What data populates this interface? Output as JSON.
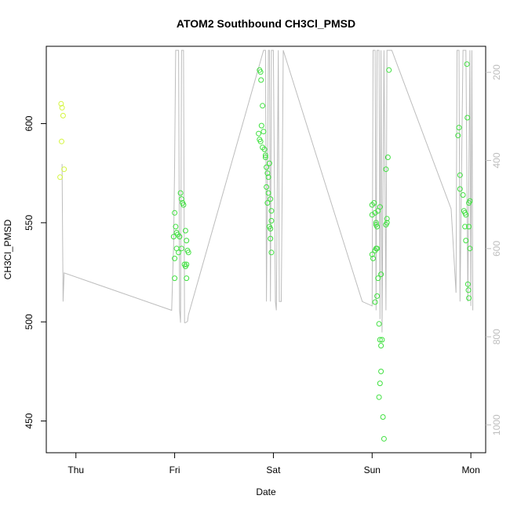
{
  "chart_data": {
    "type": "scatter",
    "title": "ATOM2 Southbound CH3Cl_PMSD",
    "xlabel": "Date",
    "ylabel": "CH3Cl_PMSD",
    "x_ticks": [
      "Thu",
      "Fri",
      "Sat",
      "Sun",
      "Mon"
    ],
    "x_range_days": [
      -0.3,
      4.15
    ],
    "ylim": [
      434,
      639
    ],
    "y_ticks": [
      450,
      500,
      550,
      600
    ],
    "y2_ticks": [
      200,
      400,
      600,
      800,
      1000
    ],
    "y2_range": [
      1063,
      141
    ],
    "y2_reversed": true,
    "grid": false,
    "colors": {
      "axis": "#000000",
      "secondary_axis": "#bdbdbd",
      "altitude_line": "#bdbdbd",
      "points_early": "#d4f53c",
      "points": "#40e040"
    },
    "series": [
      {
        "points": [
          [
            -0.15,
            610
          ],
          [
            -0.14,
            608
          ],
          [
            -0.13,
            604
          ],
          [
            -0.145,
            591
          ],
          [
            -0.12,
            577
          ],
          [
            -0.16,
            573
          ],
          [
            0.99,
            543
          ],
          [
            1.0,
            555
          ],
          [
            1.01,
            548
          ],
          [
            1.02,
            545
          ],
          [
            1.03,
            544
          ],
          [
            1.0,
            532
          ],
          [
            1.02,
            537
          ],
          [
            1.06,
            565
          ],
          [
            1.07,
            562
          ],
          [
            1.08,
            560
          ],
          [
            1.09,
            559
          ],
          [
            1.05,
            543
          ],
          [
            1.07,
            537
          ],
          [
            1.04,
            535
          ],
          [
            1.11,
            546
          ],
          [
            1.12,
            541
          ],
          [
            1.13,
            536
          ],
          [
            1.14,
            535
          ],
          [
            1.1,
            529
          ],
          [
            1.12,
            529
          ],
          [
            1.11,
            528
          ],
          [
            1.0,
            522
          ],
          [
            1.12,
            522
          ],
          [
            1.86,
            627
          ],
          [
            1.87,
            626
          ],
          [
            1.875,
            622
          ],
          [
            1.89,
            609
          ],
          [
            1.85,
            595
          ],
          [
            1.86,
            592
          ],
          [
            1.87,
            591
          ],
          [
            1.88,
            599
          ],
          [
            1.9,
            596
          ],
          [
            1.89,
            588
          ],
          [
            1.91,
            587
          ],
          [
            1.92,
            583
          ],
          [
            1.92,
            584
          ],
          [
            1.93,
            578
          ],
          [
            1.94,
            575
          ],
          [
            1.95,
            573
          ],
          [
            1.96,
            580
          ],
          [
            1.93,
            568
          ],
          [
            1.95,
            565
          ],
          [
            1.94,
            560
          ],
          [
            1.97,
            562
          ],
          [
            1.98,
            556
          ],
          [
            1.98,
            551
          ],
          [
            1.96,
            548
          ],
          [
            1.97,
            547
          ],
          [
            1.97,
            542
          ],
          [
            1.98,
            535
          ],
          [
            3.0,
            559
          ],
          [
            3.02,
            560
          ],
          [
            3.0,
            554
          ],
          [
            3.03,
            555
          ],
          [
            3.04,
            550
          ],
          [
            3.06,
            556
          ],
          [
            3.08,
            558
          ],
          [
            3.0,
            534
          ],
          [
            3.01,
            532
          ],
          [
            3.03,
            536
          ],
          [
            3.04,
            537
          ],
          [
            3.05,
            537
          ],
          [
            3.04,
            549
          ],
          [
            3.05,
            548
          ],
          [
            3.06,
            522
          ],
          [
            3.09,
            524
          ],
          [
            3.05,
            513
          ],
          [
            3.03,
            510
          ],
          [
            3.07,
            499
          ],
          [
            3.08,
            491
          ],
          [
            3.09,
            488
          ],
          [
            3.1,
            491
          ],
          [
            3.09,
            475
          ],
          [
            3.08,
            469
          ],
          [
            3.07,
            462
          ],
          [
            3.11,
            452
          ],
          [
            3.12,
            441
          ],
          [
            3.15,
            552
          ],
          [
            3.14,
            549
          ],
          [
            3.15,
            550
          ],
          [
            3.17,
            627
          ],
          [
            3.16,
            583
          ],
          [
            3.14,
            577
          ],
          [
            3.87,
            594
          ],
          [
            3.88,
            598
          ],
          [
            3.89,
            574
          ],
          [
            3.89,
            567
          ],
          [
            3.92,
            564
          ],
          [
            3.93,
            556
          ],
          [
            3.94,
            555
          ],
          [
            3.95,
            554
          ],
          [
            3.96,
            630
          ],
          [
            3.965,
            603
          ],
          [
            3.94,
            548
          ],
          [
            3.98,
            548
          ],
          [
            3.95,
            541
          ],
          [
            3.99,
            537
          ],
          [
            3.99,
            561
          ],
          [
            3.98,
            560
          ],
          [
            3.97,
            519
          ],
          [
            3.975,
            516
          ],
          [
            3.98,
            512
          ]
        ]
      }
    ],
    "altitude_line": [
      [
        -0.14,
        408
      ],
      [
        -0.13,
        720
      ],
      [
        -0.12,
        655
      ],
      [
        0.97,
        740
      ],
      [
        0.99,
        590
      ],
      [
        1.0,
        400
      ],
      [
        1.01,
        150
      ],
      [
        1.04,
        150
      ],
      [
        1.05,
        740
      ],
      [
        1.06,
        768
      ],
      [
        1.07,
        150
      ],
      [
        1.09,
        150
      ],
      [
        1.1,
        768
      ],
      [
        1.11,
        768
      ],
      [
        1.13,
        765
      ],
      [
        1.14,
        750
      ],
      [
        1.9,
        150
      ],
      [
        1.92,
        150
      ],
      [
        1.93,
        720
      ],
      [
        1.95,
        150
      ],
      [
        1.96,
        150
      ],
      [
        1.97,
        720
      ],
      [
        1.98,
        150
      ],
      [
        2.0,
        150
      ],
      [
        2.02,
        720
      ],
      [
        2.03,
        740
      ],
      [
        2.05,
        150
      ],
      [
        2.06,
        720
      ],
      [
        2.08,
        720
      ],
      [
        2.1,
        150
      ],
      [
        2.9,
        720
      ],
      [
        3.0,
        730
      ],
      [
        3.01,
        150
      ],
      [
        3.03,
        150
      ],
      [
        3.04,
        740
      ],
      [
        3.05,
        150
      ],
      [
        3.07,
        150
      ],
      [
        3.08,
        760
      ],
      [
        3.09,
        150
      ],
      [
        3.1,
        790
      ],
      [
        3.12,
        150
      ],
      [
        3.14,
        740
      ],
      [
        3.15,
        150
      ],
      [
        3.2,
        150
      ],
      [
        3.8,
        510
      ],
      [
        3.85,
        700
      ],
      [
        3.86,
        150
      ],
      [
        3.88,
        150
      ],
      [
        3.89,
        720
      ],
      [
        3.92,
        150
      ],
      [
        3.95,
        150
      ],
      [
        3.97,
        720
      ],
      [
        3.99,
        150
      ],
      [
        4.0,
        730
      ],
      [
        4.01,
        150
      ],
      [
        4.02,
        740
      ]
    ]
  }
}
